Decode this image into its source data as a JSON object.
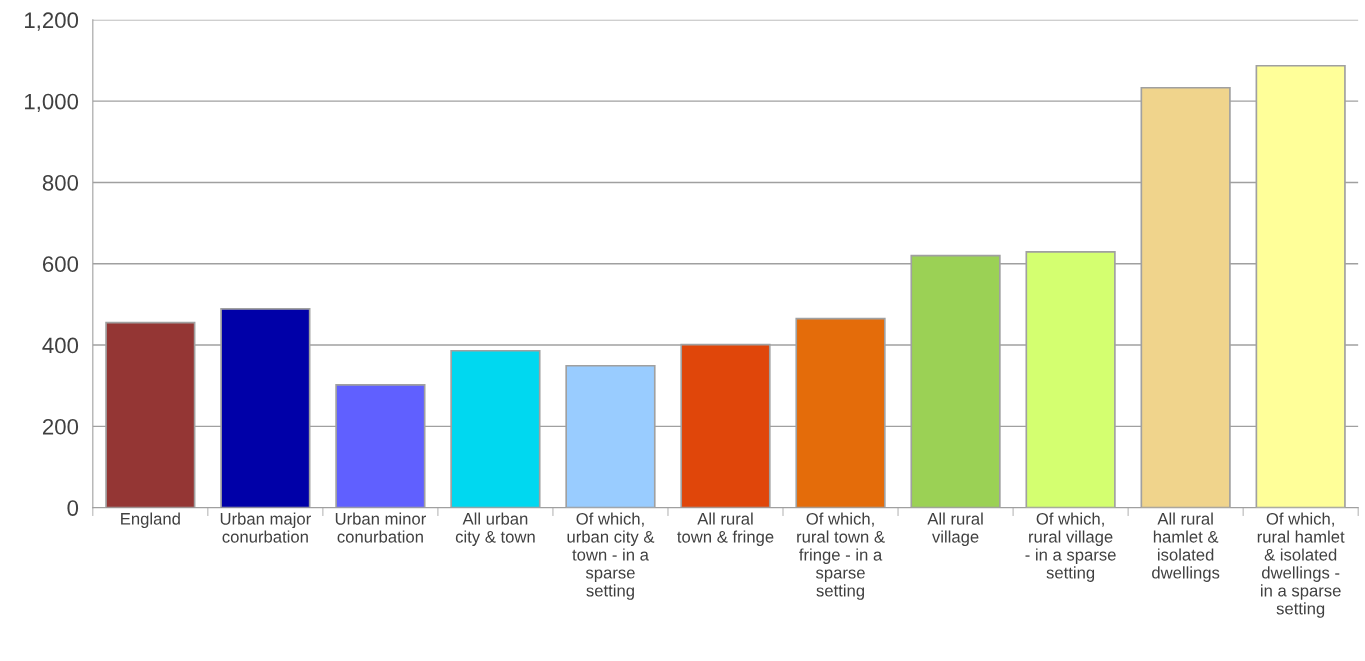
{
  "chart_data": {
    "type": "bar",
    "categories": [
      "England",
      "Urban major conurbation",
      "Urban minor conurbation",
      "All urban city & town",
      "Of which, urban city & town - in a sparse setting",
      "All rural town & fringe",
      "Of which, rural town & fringe - in a sparse setting",
      "All rural village",
      "Of which, rural village - in a sparse setting",
      "All rural hamlet & isolated dwellings",
      "Of which, rural hamlet & isolated dwellings - in a sparse setting"
    ],
    "values": [
      455,
      489,
      302,
      386,
      349,
      401,
      465,
      620,
      629,
      1033,
      1087
    ],
    "colors": [
      "#943634",
      "#0000a8",
      "#6060ff",
      "#00d8f0",
      "#99ccff",
      "#e0460a",
      "#e46c0a",
      "#9bd155",
      "#d4ff70",
      "#f0d48c",
      "#ffff99"
    ],
    "ylim": [
      0,
      1200
    ],
    "yticks": [
      0,
      200,
      400,
      600,
      800,
      {
        "value": 1000,
        "label": "1,000"
      },
      {
        "value": 1200,
        "label": "1,200"
      }
    ],
    "grid": "y"
  }
}
